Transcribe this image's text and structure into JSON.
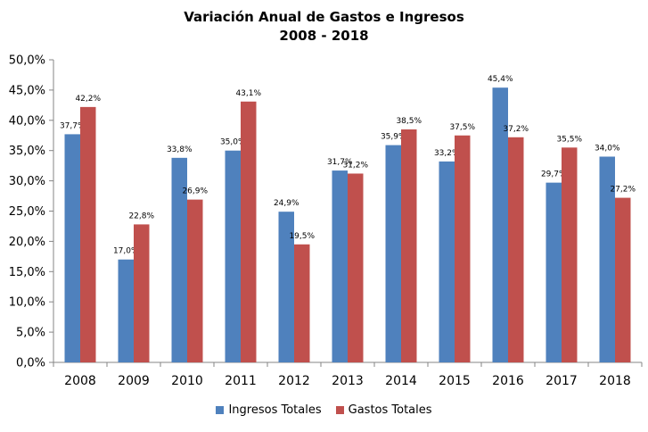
{
  "chart_data": {
    "type": "bar",
    "title": "Variación Anual de Gastos e Ingresos",
    "subtitle": "2008 - 2018",
    "categories": [
      "2008",
      "2009",
      "2010",
      "2011",
      "2012",
      "2013",
      "2014",
      "2015",
      "2016",
      "2017",
      "2018"
    ],
    "series": [
      {
        "name": "Ingresos Totales",
        "color": "#4F81BD",
        "values": [
          37.7,
          17.0,
          33.8,
          35.0,
          24.9,
          31.7,
          35.9,
          33.2,
          45.4,
          29.7,
          34.0
        ],
        "labels": [
          "37,7%",
          "17,0%",
          "33,8%",
          "35,0%",
          "24,9%",
          "31,7%",
          "35,9%",
          "33,2%",
          "45,4%",
          "29,7%",
          "34,0%"
        ]
      },
      {
        "name": "Gastos Totales",
        "color": "#C0504D",
        "values": [
          42.2,
          22.8,
          26.9,
          43.1,
          19.5,
          31.2,
          38.5,
          37.5,
          37.2,
          35.5,
          27.2
        ],
        "labels": [
          "42,2%",
          "22,8%",
          "26,9%",
          "43,1%",
          "19,5%",
          "31,2%",
          "38,5%",
          "37,5%",
          "37,2%",
          "35,5%",
          "27,2%"
        ]
      }
    ],
    "ylim": [
      0,
      50
    ],
    "yticks": [
      0,
      5,
      10,
      15,
      20,
      25,
      30,
      35,
      40,
      45,
      50
    ],
    "ytick_labels": [
      "0,0%",
      "5,0%",
      "10,0%",
      "15,0%",
      "20,0%",
      "25,0%",
      "30,0%",
      "35,0%",
      "40,0%",
      "45,0%",
      "50,0%"
    ],
    "grid": false,
    "legend_position": "bottom"
  }
}
